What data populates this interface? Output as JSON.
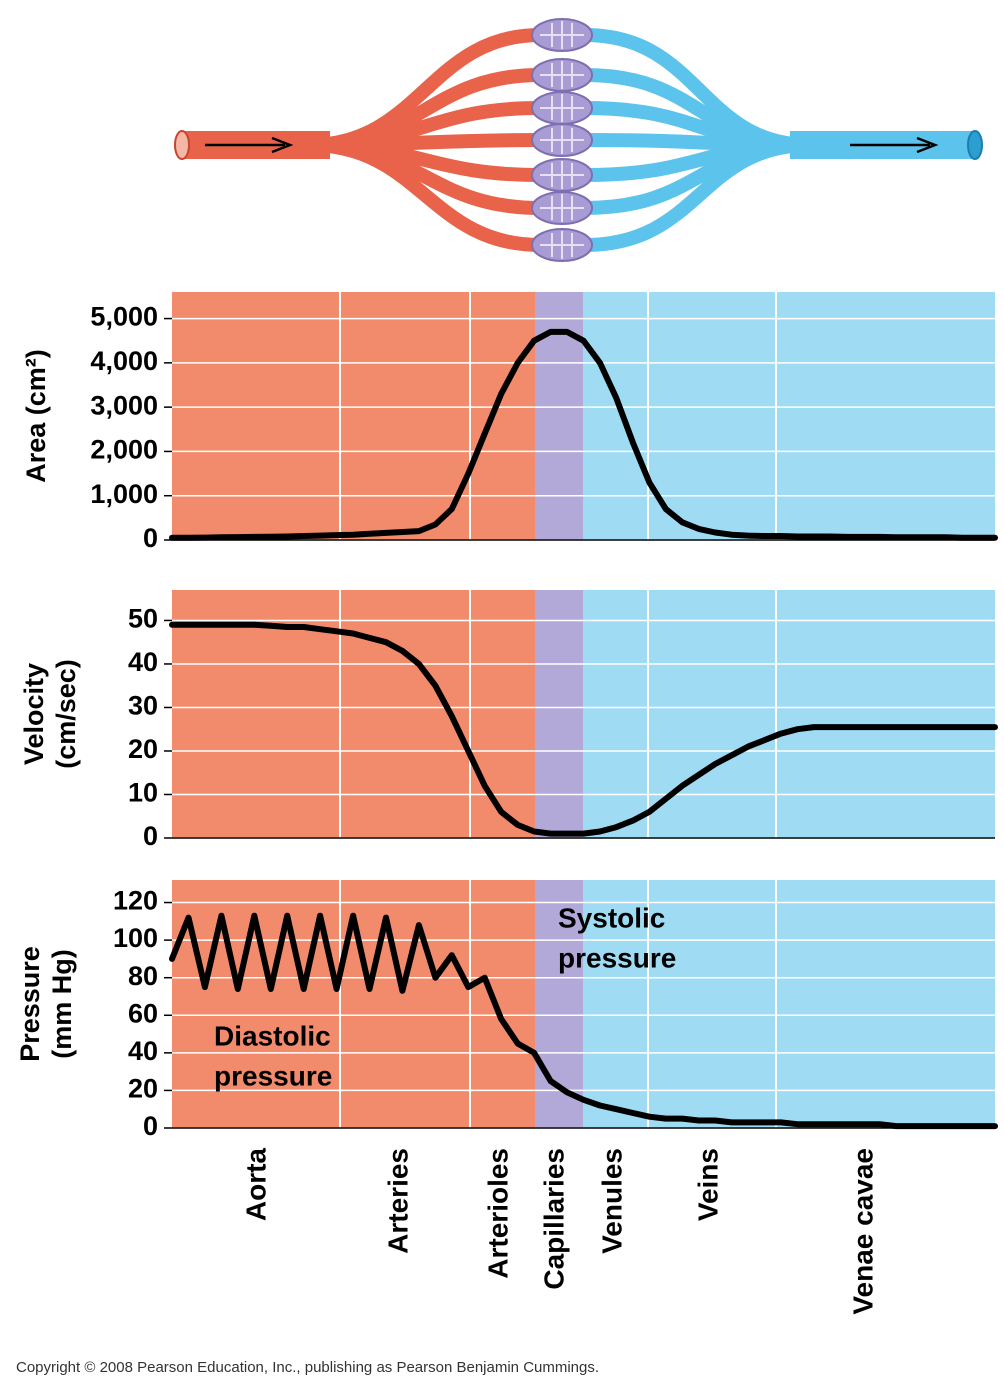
{
  "chart_data": [
    {
      "type": "line",
      "ylabel": [
        "Area (cm²)"
      ],
      "color": "#000000",
      "ylim": [
        0,
        5600
      ],
      "yticks": [
        0,
        {
          "value": 1000,
          "label": "1,000"
        },
        {
          "value": 2000,
          "label": "2,000"
        },
        {
          "value": 3000,
          "label": "3,000"
        },
        {
          "value": 4000,
          "label": "4,000"
        },
        {
          "value": 5000,
          "label": "5,000"
        }
      ],
      "values": [
        50,
        50,
        55,
        60,
        65,
        70,
        75,
        80,
        90,
        100,
        110,
        120,
        140,
        160,
        180,
        200,
        350,
        700,
        1500,
        2400,
        3300,
        4000,
        4500,
        4700,
        4700,
        4500,
        4000,
        3200,
        2200,
        1300,
        700,
        400,
        250,
        170,
        120,
        100,
        90,
        90,
        80,
        80,
        80,
        70,
        70,
        70,
        60,
        60,
        60,
        60,
        50,
        50,
        50
      ]
    },
    {
      "type": "line",
      "ylabel": [
        "Velocity",
        "(cm/sec)"
      ],
      "color": "#000000",
      "ylim": [
        0,
        57
      ],
      "yticks": [
        0,
        10,
        20,
        30,
        40,
        50
      ],
      "values": [
        49,
        49,
        49,
        49,
        49,
        49,
        48.8,
        48.5,
        48.5,
        48,
        47.5,
        47,
        46,
        45,
        43,
        40,
        35,
        28,
        20,
        12,
        6,
        3,
        1.5,
        1,
        1,
        1,
        1.5,
        2.5,
        4,
        6,
        9,
        12,
        14.5,
        17,
        19,
        21,
        22.5,
        24,
        25,
        25.5,
        25.5,
        25.5,
        25.5,
        25.5,
        25.5,
        25.5,
        25.5,
        25.5,
        25.5,
        25.5,
        25.5
      ]
    },
    {
      "type": "line",
      "ylabel": [
        "Pressure",
        "(mm Hg)"
      ],
      "color": "#000000",
      "ylim": [
        0,
        132
      ],
      "yticks": [
        0,
        20,
        40,
        60,
        80,
        100,
        120
      ],
      "values": [
        90,
        112,
        75,
        113,
        74,
        113,
        74,
        113,
        74,
        113,
        74,
        113,
        74,
        112,
        73,
        108,
        80,
        92,
        75,
        80,
        58,
        45,
        40,
        25,
        19,
        15,
        12,
        10,
        8,
        6,
        5,
        5,
        4,
        4,
        3,
        3,
        3,
        3,
        2,
        2,
        2,
        2,
        2,
        2,
        1,
        1,
        1,
        1,
        1,
        1,
        1
      ],
      "annotations": [
        {
          "lines": [
            "Systolic",
            "pressure"
          ]
        },
        {
          "lines": [
            "Diastolic",
            "pressure"
          ]
        }
      ]
    }
  ],
  "vessels": [
    "Aorta",
    "Arteries",
    "Arterioles",
    "Capillaries",
    "Venules",
    "Veins",
    "Venae cavae"
  ],
  "copyright": "Copyright © 2008 Pearson Education, Inc., publishing as Pearson Benjamin Cummings."
}
